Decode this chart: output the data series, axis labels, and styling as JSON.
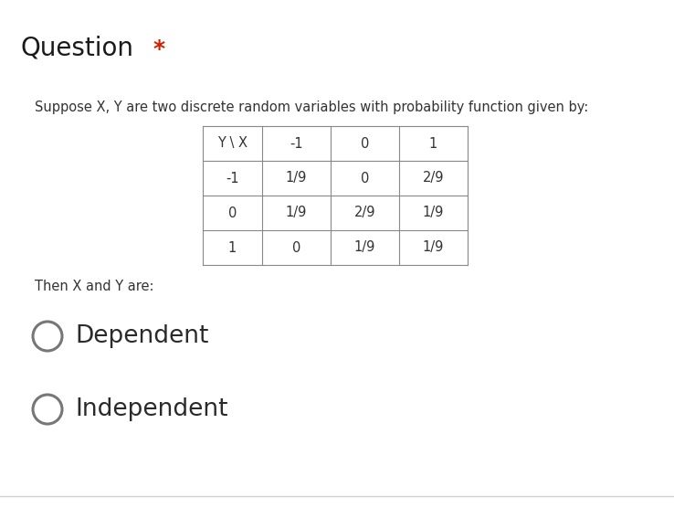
{
  "title_text": "Question",
  "title_star": "*",
  "title_color": "#1a1a1a",
  "title_star_color": "#cc2200",
  "title_fontsize": 20,
  "title_star_fontsize": 18,
  "bg_color": "#ffffff",
  "subtitle": "Suppose X, Y are two discrete random variables with probability function given by:",
  "subtitle_fontsize": 10.5,
  "subtitle_color": "#333333",
  "table_header": [
    "Y \\ X",
    "-1",
    "0",
    "1"
  ],
  "table_rows": [
    [
      "-1",
      "1/9",
      "0",
      "2/9"
    ],
    [
      "0",
      "1/9",
      "2/9",
      "1/9"
    ],
    [
      "1",
      "0",
      "1/9",
      "1/9"
    ]
  ],
  "then_text": "Then X and Y are:",
  "then_fontsize": 10.5,
  "options": [
    "Dependent",
    "Independent"
  ],
  "option_fontsize": 19,
  "option_color": "#2a2a2a",
  "circle_color": "#777777",
  "circle_linewidth": 2.2,
  "table_fontsize": 10.5,
  "table_text_color": "#333333",
  "table_line_color": "#888888",
  "separator_color": "#d0d0d0"
}
